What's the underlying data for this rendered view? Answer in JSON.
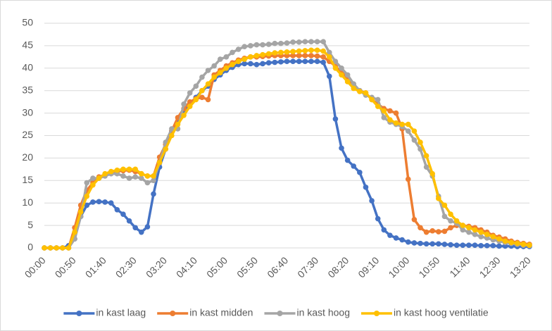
{
  "chart_data": {
    "type": "line",
    "categories": [
      "00:00",
      null,
      null,
      null,
      null,
      "00:50",
      null,
      null,
      null,
      null,
      "01:40",
      null,
      null,
      null,
      null,
      "02:30",
      null,
      null,
      null,
      null,
      "03:20",
      null,
      null,
      null,
      null,
      "04:10",
      null,
      null,
      null,
      null,
      "05:00",
      null,
      null,
      null,
      null,
      "05:50",
      null,
      null,
      null,
      null,
      "06:40",
      null,
      null,
      null,
      null,
      "07:30",
      null,
      null,
      null,
      null,
      "08:20",
      null,
      null,
      null,
      null,
      "09:10",
      null,
      null,
      null,
      null,
      "10:00",
      null,
      null,
      null,
      null,
      "10:50",
      null,
      null,
      null,
      null,
      "11:40",
      null,
      null,
      null,
      null,
      "12:30",
      null,
      null,
      null,
      null,
      "13:20"
    ],
    "series": [
      {
        "name": "in kast laag",
        "color": "#4472c4",
        "values": [
          0,
          0,
          0,
          0,
          0.5,
          2,
          7,
          9.5,
          10.2,
          10.3,
          10.2,
          10,
          8.5,
          7.5,
          6,
          4.5,
          3.5,
          4.7,
          12,
          18,
          22,
          26,
          28,
          30,
          32,
          33.5,
          35,
          36,
          37.5,
          38.5,
          39.5,
          40.2,
          40.8,
          41,
          41,
          40.8,
          41,
          41.2,
          41.3,
          41.4,
          41.5,
          41.5,
          41.5,
          41.5,
          41.5,
          41.5,
          41.3,
          38.2,
          28.7,
          22.2,
          19.5,
          18.2,
          16.8,
          13.5,
          10.5,
          6.5,
          4,
          2.8,
          2.2,
          1.8,
          1.3,
          1.1,
          1,
          0.9,
          0.9,
          0.9,
          0.8,
          0.7,
          0.6,
          0.6,
          0.6,
          0.6,
          0.5,
          0.5,
          0.5,
          0.4,
          0.4,
          0.4,
          0.3,
          0.3,
          0.3
        ]
      },
      {
        "name": "in kast midden",
        "color": "#ed7d31",
        "values": [
          0,
          0,
          0,
          0,
          0,
          4.5,
          9.5,
          12.8,
          14.5,
          15.8,
          16.3,
          16.8,
          17,
          17.2,
          17.3,
          17,
          16.5,
          16,
          16,
          20.2,
          23,
          26,
          29,
          31,
          32.5,
          33.2,
          33.5,
          33,
          38.5,
          39.5,
          40.5,
          41.2,
          41.8,
          42.2,
          42.5,
          42.5,
          42.6,
          42.7,
          42.8,
          42.8,
          42.8,
          42.8,
          42.8,
          42.8,
          42.8,
          42.7,
          42.5,
          41.5,
          40.5,
          39,
          38,
          36,
          35,
          34.5,
          33,
          32,
          31,
          30.5,
          30,
          26.5,
          15.3,
          6.3,
          4.5,
          3.5,
          3.8,
          3.6,
          3.7,
          4.5,
          5,
          5,
          4.8,
          4.5,
          4,
          3.5,
          2.8,
          2.4,
          2,
          1.5,
          1.2,
          1,
          0.8
        ]
      },
      {
        "name": "in kast hoog",
        "color": "#a5a5a5",
        "values": [
          0,
          0,
          0,
          0,
          0,
          2,
          7,
          14.5,
          15.5,
          15.5,
          16,
          16.5,
          16.5,
          16,
          15.5,
          15.8,
          15.5,
          14.5,
          15,
          19,
          23.5,
          26.5,
          26.5,
          32,
          34.5,
          36,
          38,
          39.5,
          40.5,
          42,
          42.5,
          43.5,
          44.2,
          44.8,
          45,
          45.2,
          45.2,
          45.3,
          45.5,
          45.5,
          45.6,
          45.8,
          45.8,
          45.9,
          45.9,
          45.9,
          45.9,
          43.5,
          41.5,
          40,
          38.5,
          36.5,
          35,
          34,
          33.5,
          33,
          29,
          28,
          27.5,
          27,
          26,
          24,
          22,
          18,
          16,
          11.5,
          7,
          6,
          5.5,
          4,
          3.5,
          3,
          2.5,
          2.2,
          1.8,
          1.5,
          1.2,
          1,
          0.8,
          0.6,
          0.5
        ]
      },
      {
        "name": "in kast hoog ventilatie",
        "color": "#ffc000",
        "values": [
          0,
          0,
          0,
          0,
          0,
          3.5,
          8,
          11.5,
          14,
          15.5,
          16.5,
          17,
          17.3,
          17.5,
          17.5,
          17.5,
          16.5,
          16,
          16,
          19,
          22,
          25,
          27.5,
          29.5,
          31.5,
          33,
          35,
          36.5,
          38,
          39,
          40,
          40.8,
          41.5,
          42,
          42.5,
          42.8,
          43,
          43.2,
          43.4,
          43.5,
          43.6,
          43.7,
          43.8,
          43.9,
          44,
          44,
          43.8,
          42.5,
          40,
          38.5,
          37,
          35.5,
          34.8,
          34.5,
          33,
          31.5,
          30.5,
          28.5,
          27.8,
          27.5,
          27.5,
          26,
          23.5,
          20.5,
          16.5,
          11,
          9.5,
          7.5,
          6,
          5,
          4.5,
          4,
          3.5,
          3,
          2.5,
          2,
          1.5,
          1.2,
          1,
          0.8,
          0.6
        ]
      }
    ],
    "ylim": [
      0,
      50
    ],
    "yticks": [
      0,
      5,
      10,
      15,
      20,
      25,
      30,
      35,
      40,
      45,
      50
    ],
    "grid": true,
    "legend": "bottom"
  }
}
